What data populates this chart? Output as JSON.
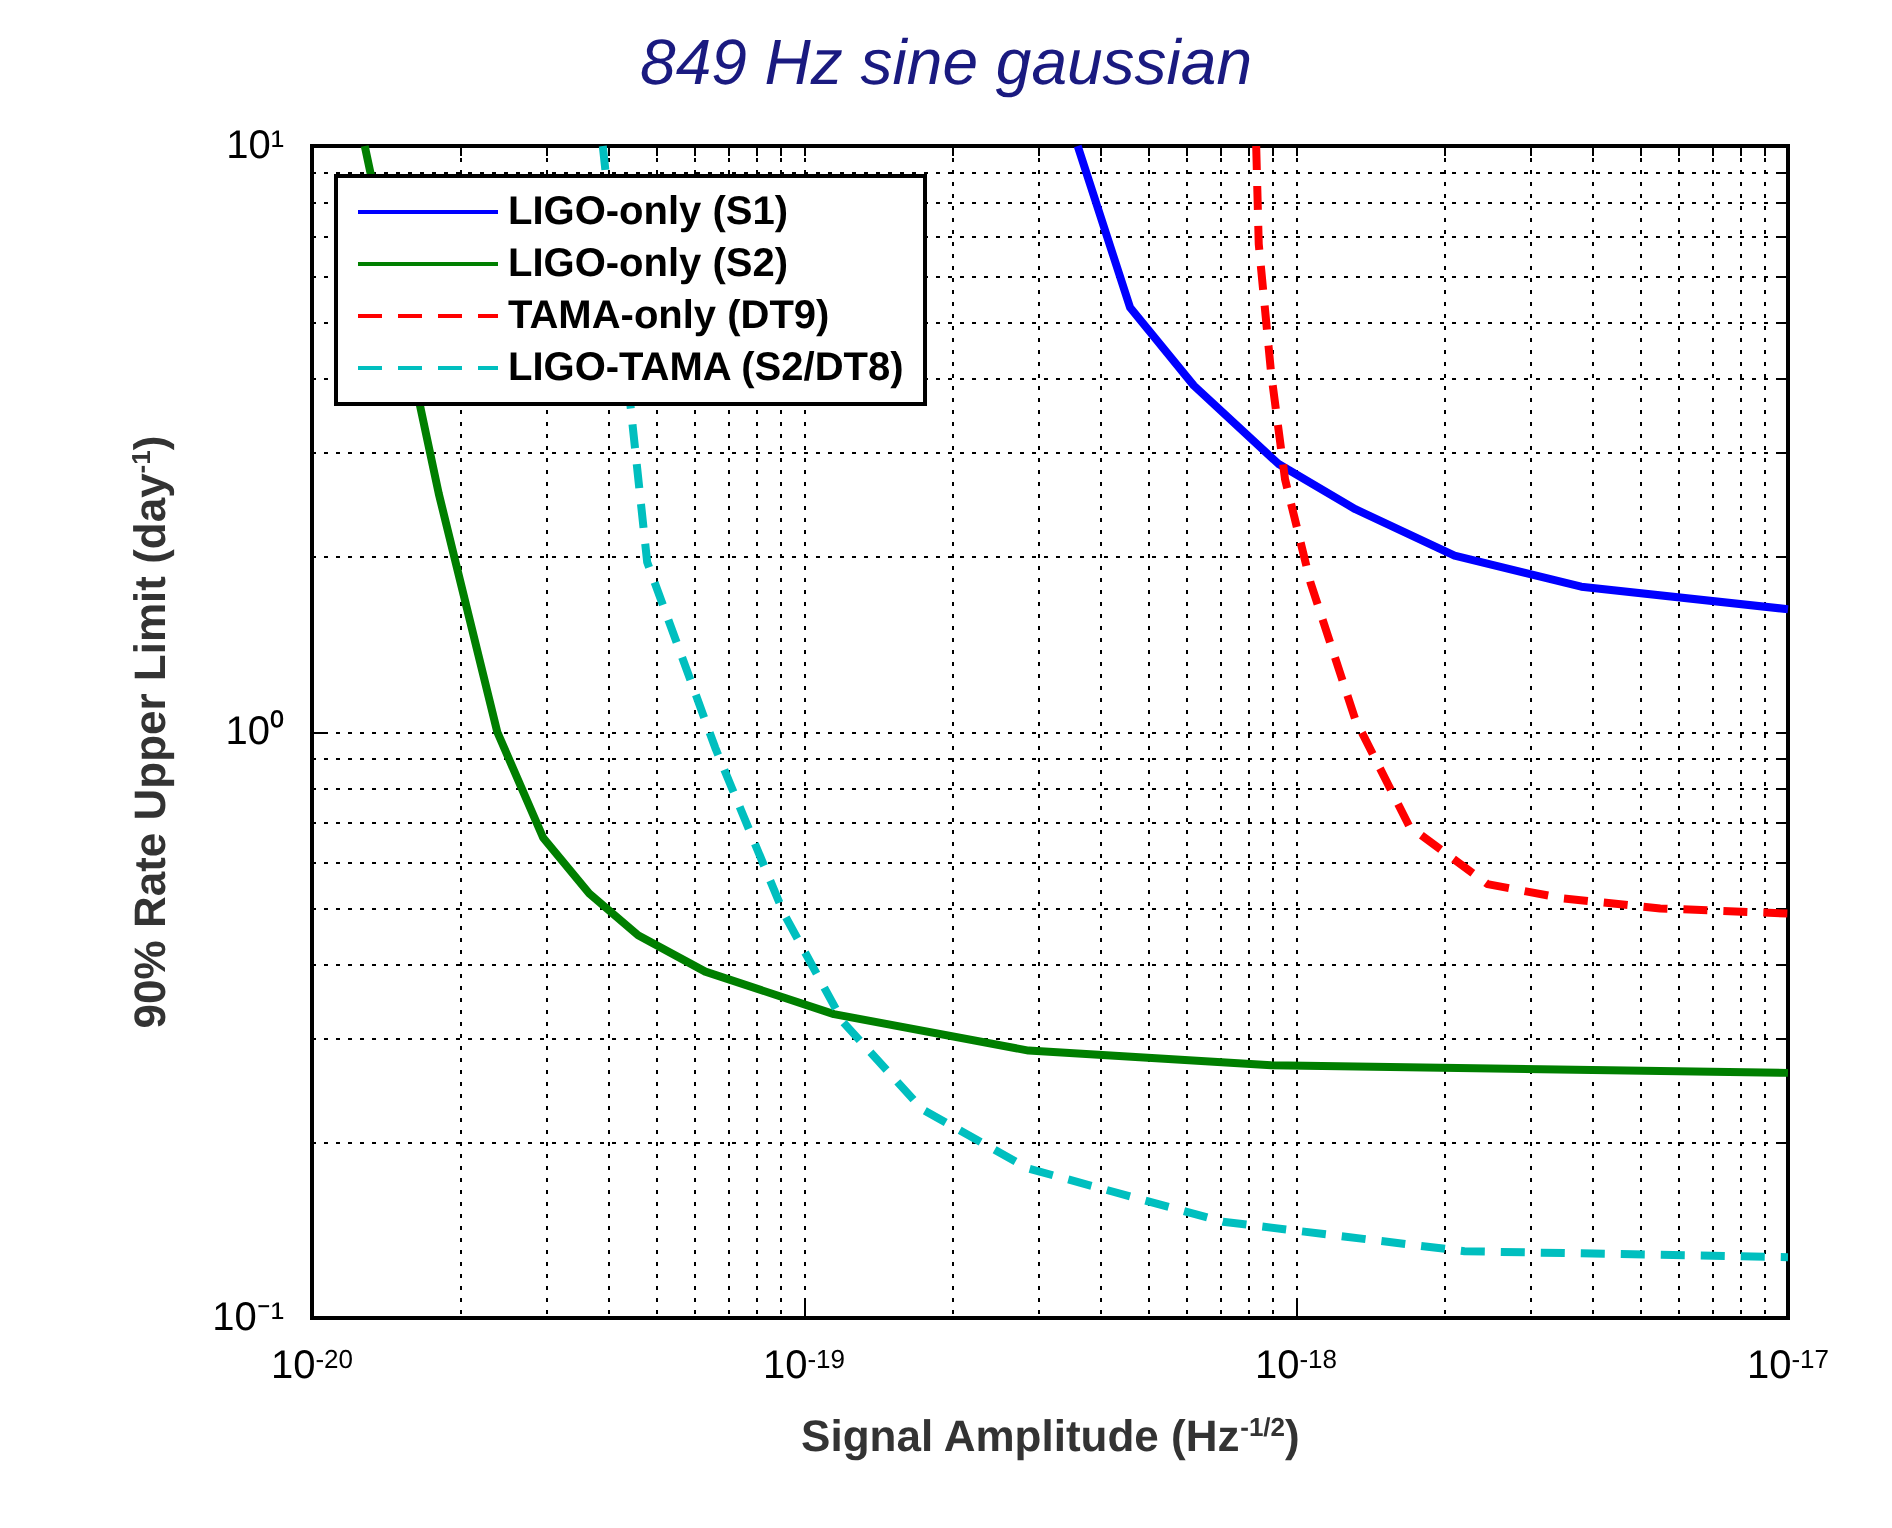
{
  "chart_data": {
    "type": "line",
    "title": "849 Hz sine gaussian",
    "xlabel": "Signal Amplitude (Hz$^{-1/2}$)",
    "ylabel": "90% Rate Upper Limit (day$^{-1}$)",
    "log": "xy",
    "grid": true,
    "legend": "top left",
    "marker": "none",
    "xlim": [
      1e-20,
      1e-17
    ],
    "ylim": [
      0.1,
      10
    ],
    "xticks": [
      {
        "value": 1e-20,
        "label": "10$^{-20}$"
      },
      {
        "value": 1e-19,
        "label": "10$^{-19}$"
      },
      {
        "value": 1e-18,
        "label": "10$^{-18}$"
      },
      {
        "value": 1e-17,
        "label": "10$^{-17}$"
      }
    ],
    "yticks": [
      {
        "value": 0.1,
        "label": "10⁻¹"
      },
      {
        "value": 1,
        "label": "10⁰"
      },
      {
        "value": 10,
        "label": "10¹"
      }
    ],
    "series": [
      {
        "name": "LIGO-only (S1)",
        "color": "#0000ff",
        "line_style": "solid",
        "x": [
          3.6e-19,
          4.6e-19,
          6.2e-19,
          9.2e-19,
          1.32e-18,
          2.1e-18,
          3.8e-18,
          1e-17
        ],
        "values": [
          10,
          5.3,
          3.9,
          2.87,
          2.4,
          2.0,
          1.77,
          1.62
        ]
      },
      {
        "name": "LIGO-only (S2)",
        "color": "#007f00",
        "line_style": "solid",
        "x": [
          1.28e-20,
          1.81e-20,
          2.38e-20,
          2.95e-20,
          3.66e-20,
          4.6e-20,
          6.3e-20,
          1.15e-19,
          2.86e-19,
          8.9e-19,
          1e-17
        ],
        "values": [
          10,
          2.55,
          1.0,
          0.66,
          0.53,
          0.45,
          0.39,
          0.33,
          0.286,
          0.27,
          0.262
        ]
      },
      {
        "name": "TAMA-only (DT9)",
        "color": "#ff0000",
        "line_style": "dashed",
        "x": [
          8.3e-19,
          8.4e-19,
          8.9e-19,
          9.5e-19,
          1.07e-18,
          1.32e-18,
          1.7e-18,
          2.45e-18,
          3.5e-18,
          5.5e-18,
          1e-17
        ],
        "values": [
          10,
          6.8,
          4.1,
          2.7,
          1.8,
          1.05,
          0.69,
          0.55,
          0.52,
          0.5,
          0.49
        ]
      },
      {
        "name": "LIGO-TAMA (S2/DT8)",
        "color": "#00bfbf",
        "line_style": "dashed",
        "x": [
          3.9e-20,
          4.8e-20,
          6.6e-20,
          9.1e-20,
          1.2e-19,
          1.74e-19,
          2.85e-19,
          7.1e-19,
          2.2e-18,
          1e-17
        ],
        "values": [
          10,
          1.95,
          0.94,
          0.49,
          0.32,
          0.227,
          0.18,
          0.146,
          0.13,
          0.127
        ]
      }
    ]
  }
}
